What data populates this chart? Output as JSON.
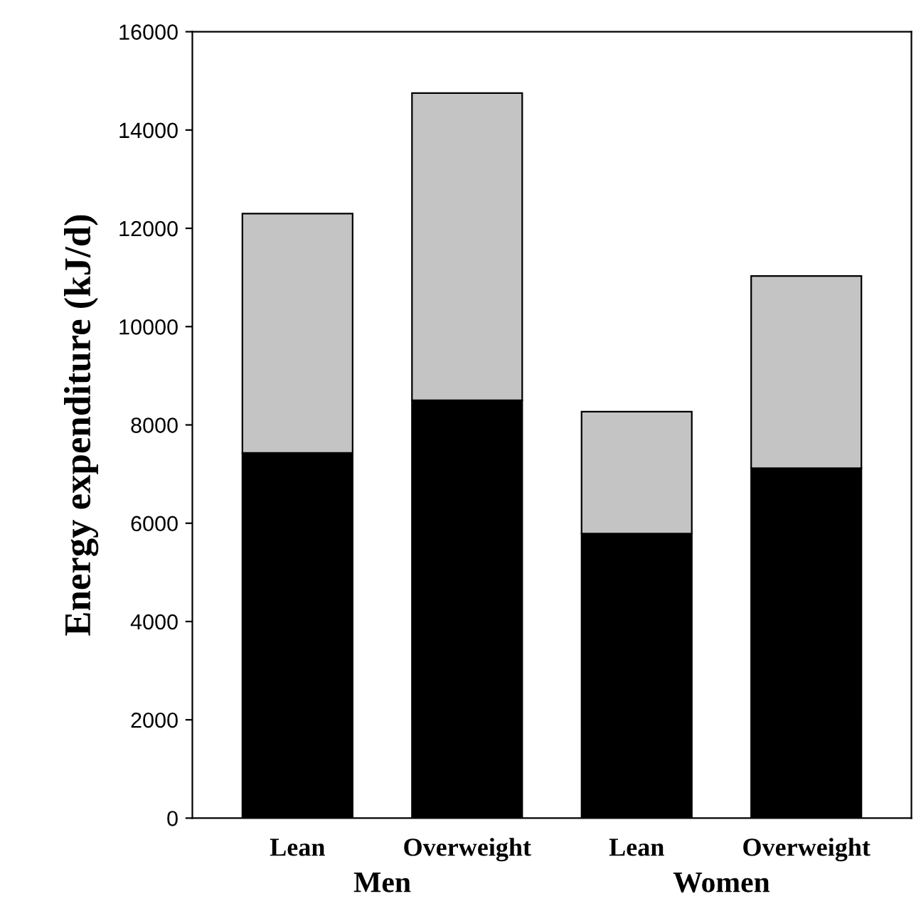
{
  "chart_data": {
    "type": "bar",
    "stacked": true,
    "ylabel": "Energy expenditure (kJ/d)",
    "categories": [
      "Lean",
      "Overweight",
      "Lean",
      "Overweight"
    ],
    "series": [
      {
        "color": "#000000",
        "values": [
          7430,
          8500,
          5790,
          7120
        ]
      },
      {
        "color": "#c4c4c4",
        "values": [
          4870,
          6250,
          2480,
          3910
        ]
      }
    ],
    "ylim": [
      0,
      16000
    ],
    "yticks": [
      0,
      2000,
      4000,
      6000,
      8000,
      10000,
      12000,
      14000,
      16000
    ],
    "annotations": [
      "Men",
      "Women"
    ],
    "grid": false,
    "legend": false
  }
}
